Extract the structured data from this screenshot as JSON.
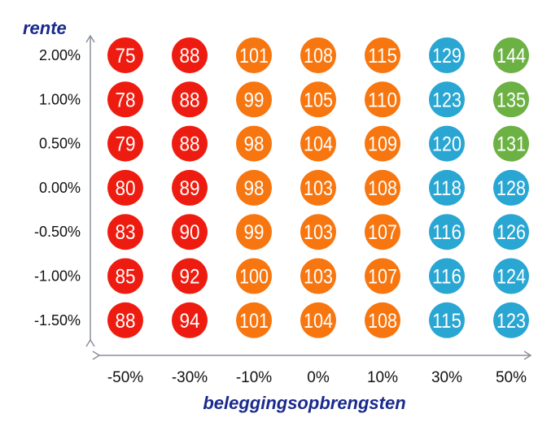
{
  "chart_data": {
    "type": "heatmap",
    "title": "",
    "xlabel": "beleggingsopbrengsten",
    "ylabel": "rente",
    "x_categories": [
      "-50%",
      "-30%",
      "-10%",
      "0%",
      "10%",
      "30%",
      "50%"
    ],
    "y_categories": [
      "2.00%",
      "1.00%",
      "0.50%",
      "0.00%",
      "-0.50%",
      "-1.00%",
      "-1.50%"
    ],
    "values": [
      [
        75,
        88,
        101,
        108,
        115,
        129,
        144
      ],
      [
        78,
        88,
        99,
        105,
        110,
        123,
        135
      ],
      [
        79,
        88,
        98,
        104,
        109,
        120,
        131
      ],
      [
        80,
        89,
        98,
        103,
        108,
        118,
        128
      ],
      [
        83,
        90,
        99,
        103,
        107,
        116,
        126
      ],
      [
        85,
        92,
        100,
        103,
        107,
        116,
        124
      ],
      [
        88,
        94,
        101,
        104,
        108,
        115,
        123
      ]
    ],
    "colors": {
      "red": "#ee1c10",
      "orange": "#f7760f",
      "blue": "#2aa6d3",
      "green": "#6cb143",
      "axis": "#8a8f9a",
      "axis_title": "#1a2a8c"
    },
    "column_colors": [
      "red",
      "red",
      "orange",
      "orange",
      "orange",
      "blue",
      "blue"
    ],
    "color_overrides": [
      {
        "row": 0,
        "col": 6,
        "color": "green"
      },
      {
        "row": 1,
        "col": 6,
        "color": "green"
      },
      {
        "row": 2,
        "col": 6,
        "color": "green"
      }
    ]
  }
}
